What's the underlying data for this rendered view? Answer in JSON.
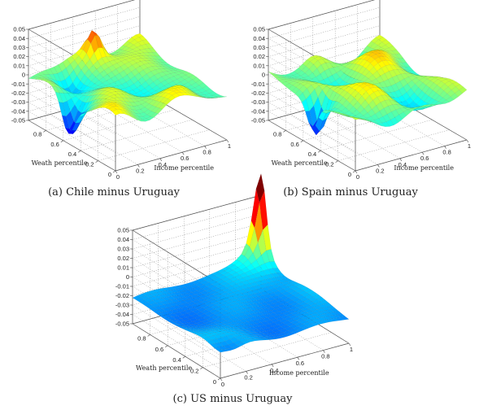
{
  "figure": {
    "panels": [
      {
        "id": "a",
        "caption": "(a) Chile minus Uruguay"
      },
      {
        "id": "b",
        "caption": "(b) Spain minus Uruguay"
      },
      {
        "id": "c",
        "caption": "(c) US minus Uruguay"
      }
    ]
  },
  "chart_data": [
    {
      "type": "surface",
      "caption": "(a) Chile minus Uruguay",
      "xlabel": "Income percentile",
      "ylabel": "Weath percentile",
      "zlabel": "",
      "xlim": [
        0,
        1
      ],
      "ylim": [
        0,
        1
      ],
      "zlim": [
        -0.05,
        0.05
      ],
      "x_ticks": [
        "0",
        "0.2",
        "0.4",
        "0.6",
        "0.8",
        "1"
      ],
      "y_ticks": [
        "0",
        "0.2",
        "0.4",
        "0.6",
        "0.8"
      ],
      "z_ticks": [
        "0.05",
        "0.04",
        "0.03",
        "0.02",
        "0.01",
        "0",
        "-0.01",
        "-0.02",
        "-0.03",
        "-0.04",
        "-0.05"
      ],
      "colormap": "jet",
      "features": [
        {
          "x": 0.55,
          "y": 0.95,
          "z": 0.033,
          "note": "peak"
        },
        {
          "x": 0.02,
          "y": 0.55,
          "z": -0.045,
          "note": "trough"
        }
      ]
    },
    {
      "type": "surface",
      "caption": "(b) Spain minus Uruguay",
      "xlabel": "Income percentile",
      "ylabel": "Weath percentile",
      "zlabel": "",
      "xlim": [
        0,
        1
      ],
      "ylim": [
        0,
        1
      ],
      "zlim": [
        -0.05,
        0.05
      ],
      "x_ticks": [
        "0",
        "0.2",
        "0.4",
        "0.6",
        "0.8",
        "1"
      ],
      "y_ticks": [
        "0",
        "0.2",
        "0.4",
        "0.6",
        "0.8"
      ],
      "z_ticks": [
        "0.05",
        "0.04",
        "0.03",
        "0.02",
        "0.01",
        "0",
        "-0.01",
        "-0.02",
        "-0.03",
        "-0.04",
        "-0.05"
      ],
      "colormap": "jet",
      "features": [
        {
          "x": 0.05,
          "y": 0.5,
          "z": -0.048,
          "note": "trough"
        }
      ]
    },
    {
      "type": "surface",
      "caption": "(c) US minus Uruguay",
      "xlabel": "Income percentile",
      "ylabel": "Weath percentile",
      "zlabel": "",
      "xlim": [
        0,
        1
      ],
      "ylim": [
        0,
        1
      ],
      "zlim": [
        -0.05,
        0.05
      ],
      "x_ticks": [
        "0",
        "0.2",
        "0.4",
        "0.6",
        "0.8",
        "1"
      ],
      "y_ticks": [
        "0",
        "0.2",
        "0.4",
        "0.6",
        "0.8"
      ],
      "z_ticks": [
        "0.05",
        "0.04",
        "0.03",
        "0.02",
        "0.01",
        "0",
        "-0.01",
        "-0.02",
        "-0.03",
        "-0.04",
        "-0.05"
      ],
      "colormap": "jet",
      "features": [
        {
          "x": 1.0,
          "y": 1.0,
          "z": 0.06,
          "note": "peak"
        },
        {
          "x": 0.1,
          "y": 0.05,
          "z": -0.018,
          "note": "trough"
        }
      ]
    }
  ]
}
